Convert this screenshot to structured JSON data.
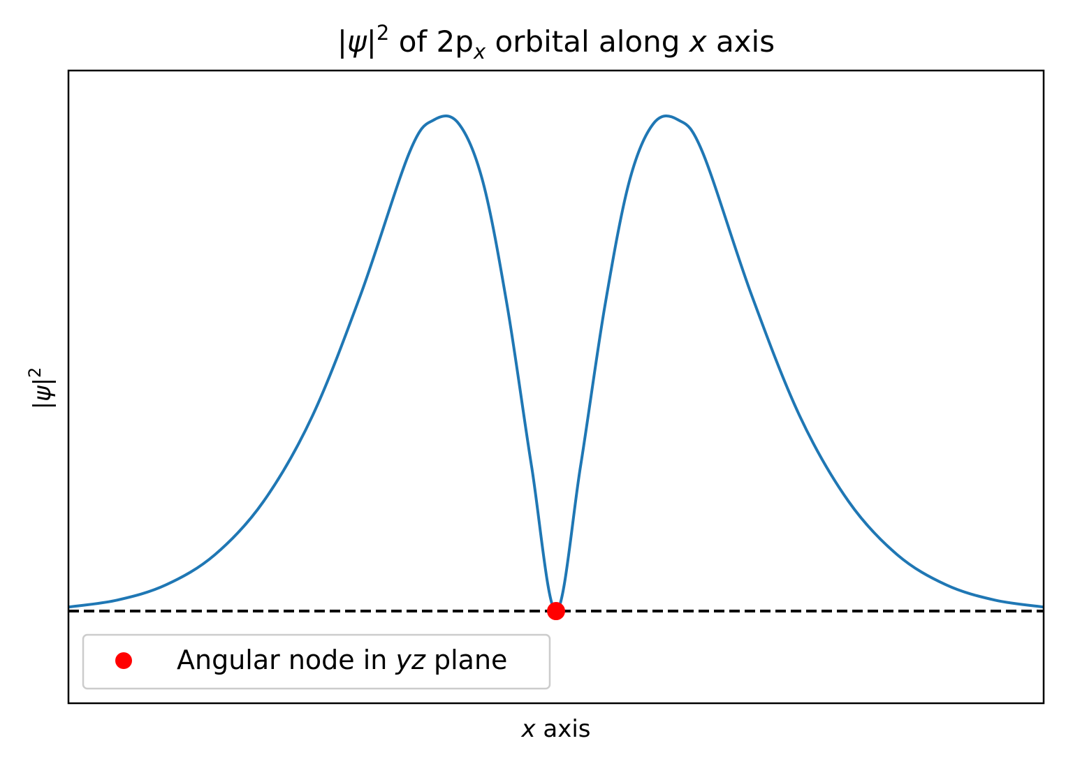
{
  "chart_data": {
    "type": "line",
    "title": {
      "psi": "ψ",
      "sup": "2",
      "middle": " of 2p",
      "sub": "x",
      "after": " orbital along ",
      "var": "x",
      "end": " axis"
    },
    "xlabel": {
      "var": "x",
      "rest": " axis"
    },
    "ylabel": {
      "psi": "ψ",
      "sup": "2"
    },
    "xlim": [
      -10,
      10
    ],
    "ylim": [
      -0.1875,
      1.1
    ],
    "x_ticks_shown": false,
    "y_ticks_shown": false,
    "grid": false,
    "series": [
      {
        "style": "solid",
        "color": "#1f77b4",
        "x": [
          -10,
          -9,
          -8,
          -7,
          -6,
          -5,
          -4,
          -3,
          -2.5,
          -2,
          -1.5,
          -1,
          -0.5,
          0,
          0.5,
          1,
          1.5,
          2,
          2.5,
          3,
          4,
          5,
          6,
          7,
          8,
          9,
          10
        ],
        "y": [
          0.0083,
          0.0224,
          0.0534,
          0.1145,
          0.2231,
          0.3965,
          0.6459,
          0.9349,
          0.9998,
          0.9924,
          0.8735,
          0.6201,
          0.2934,
          0.0,
          0.2934,
          0.6201,
          0.8735,
          0.9924,
          0.9998,
          0.9349,
          0.6459,
          0.3965,
          0.2231,
          0.1145,
          0.0534,
          0.0224,
          0.0083
        ]
      },
      {
        "style": "dashed",
        "color": "#000000",
        "x": [
          -10,
          10
        ],
        "y": [
          0,
          0
        ]
      },
      {
        "name": "Angular node in yz plane",
        "style": "marker",
        "color": "#ff0000",
        "x": [
          0
        ],
        "y": [
          0
        ]
      }
    ],
    "legend": {
      "placement": "lower-left",
      "entries": [
        {
          "label_before": "Angular node in ",
          "label_var": "yz",
          "label_after": " plane",
          "marker": "circle",
          "color": "#ff0000"
        }
      ]
    }
  }
}
